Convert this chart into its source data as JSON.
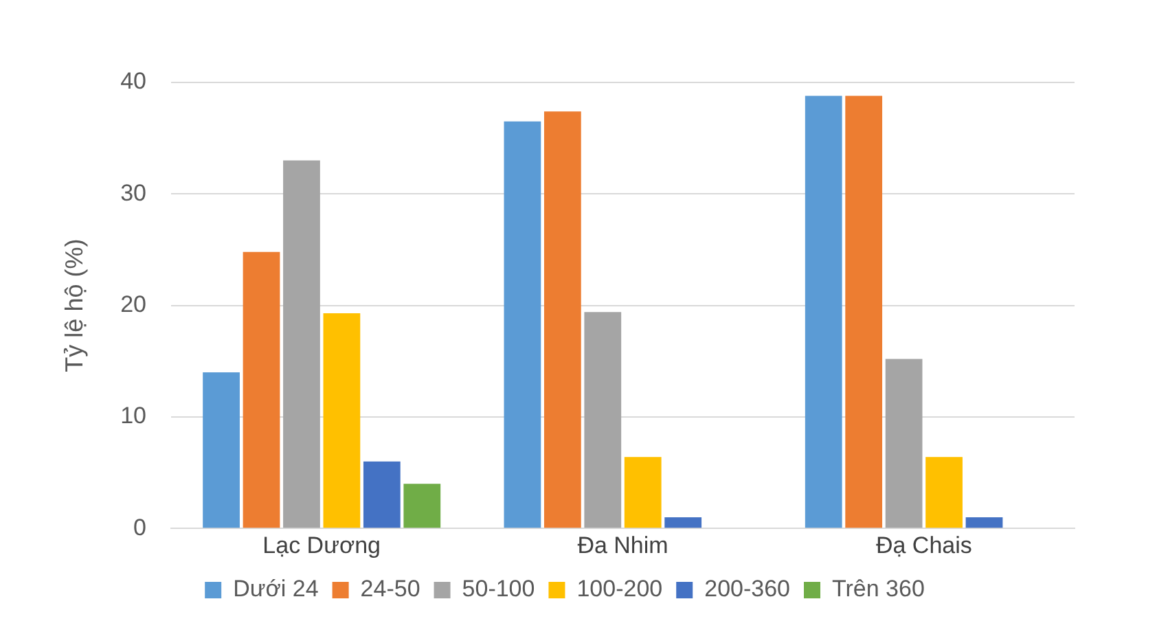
{
  "chart_data": {
    "type": "bar",
    "ylabel": "Tỷ lệ hộ (%)",
    "categories": [
      "Lạc Dương",
      "Đa Nhim",
      "Đạ Chais"
    ],
    "series": [
      {
        "name": "Dưới 24",
        "color": "#5b9bd5",
        "values": [
          14,
          36.5,
          38.8
        ]
      },
      {
        "name": "24-50",
        "color": "#ed7d31",
        "values": [
          24.8,
          37.4,
          38.8
        ]
      },
      {
        "name": "50-100",
        "color": "#a5a5a5",
        "values": [
          33,
          19.4,
          15.2
        ]
      },
      {
        "name": "100-200",
        "color": "#ffc000",
        "values": [
          19.3,
          6.4,
          6.4
        ]
      },
      {
        "name": "200-360",
        "color": "#4472c4",
        "values": [
          6,
          1,
          1
        ]
      },
      {
        "name": "Trên 360",
        "color": "#70ad47",
        "values": [
          4,
          null,
          null
        ]
      }
    ],
    "ylim": [
      0,
      40
    ],
    "yticks": [
      0,
      10,
      20,
      30,
      40
    ],
    "grid": "y",
    "legend": "bottom"
  }
}
